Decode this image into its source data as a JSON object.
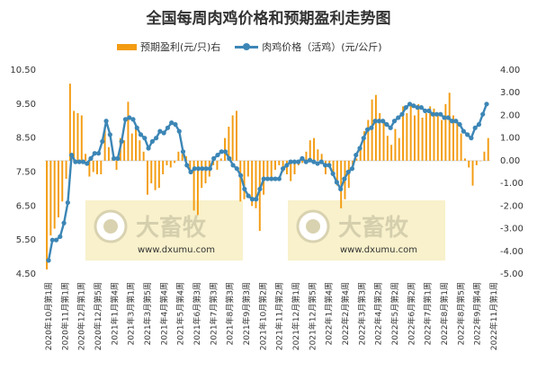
{
  "chart_data": {
    "type": "bar+line",
    "title": "全国每周肉鸡价格和预期盈利走势图",
    "legend": [
      "预期盈利(元/只)右",
      "肉鸡价格（活鸡）(元/公斤)"
    ],
    "legend_position": "top",
    "grid": false,
    "y_left": {
      "ticks": [
        "4.50",
        "5.50",
        "6.50",
        "7.50",
        "8.50",
        "9.50",
        "10.50"
      ],
      "range": [
        4.5,
        10.5
      ]
    },
    "y_right": {
      "ticks": [
        "-5.00",
        "-4.00",
        "-3.00",
        "-2.00",
        "-1.00",
        "0.00",
        "1.00",
        "2.00",
        "3.00",
        "4.00"
      ],
      "range": [
        -5,
        4
      ]
    },
    "x_labels": [
      "2020年10月第1周",
      "2020年11月第1周",
      "2020年12月第1周",
      "2020年12月第5周",
      "2021年1月第4周",
      "2021年3月第1周",
      "2021年3月第5周",
      "2021年4月第4周",
      "2021年5月第4周",
      "2021年6月第3周",
      "2021年7月第3周",
      "2021年8月第3周",
      "2021年9月第3周",
      "2021年10月第2周",
      "2021年11月第2周",
      "2021年12月第1周",
      "2021年12月第5周",
      "2022年1月第4周",
      "2022年2月第4周",
      "2022年3月第3周",
      "2022年4月第2周",
      "2022年5月第2周",
      "2022年6月第2周",
      "2022年7月第1周",
      "2022年8月第1周",
      "2022年8月第5周",
      "2022年9月第4周",
      "2022年11月第1周"
    ],
    "series": [
      {
        "name": "预期盈利(元/只)右",
        "type": "bar",
        "axis": "right",
        "color": "#f39c12",
        "values": [
          -4.8,
          -3.3,
          -3.0,
          -2.5,
          -1.8,
          -0.8,
          3.4,
          2.2,
          2.1,
          2.0,
          0.3,
          -0.7,
          -0.5,
          -0.6,
          -0.6,
          1.5,
          0.6,
          0.1,
          -0.4,
          1.0,
          0.9,
          2.6,
          1.2,
          1.6,
          0.9,
          0.4,
          -1.5,
          -1.0,
          -1.3,
          -1.2,
          -0.6,
          -0.2,
          -0.3,
          -0.1,
          0.4,
          0.3,
          0.2,
          -0.4,
          -2.2,
          -2.4,
          -1.2,
          -1.0,
          -0.7,
          -0.2,
          -0.4,
          0.1,
          1.0,
          1.5,
          2.0,
          2.2,
          -1.8,
          -1.7,
          -0.7,
          -2.0,
          -2.1,
          -3.1,
          -1.5,
          -0.7,
          -0.9,
          -0.4,
          -0.2,
          -0.5,
          -0.6,
          -0.9,
          -0.6,
          -0.2,
          -0.1,
          0.4,
          0.9,
          1.0,
          0.5,
          0.3,
          -0.6,
          -0.2,
          -0.5,
          -1.1,
          -2.1,
          -1.7,
          -1.2,
          -0.3,
          0.1,
          0.6,
          1.3,
          1.8,
          2.7,
          2.9,
          2.1,
          1.7,
          1.1,
          0.7,
          1.4,
          1.0,
          2.4,
          2.1,
          2.5,
          2.0,
          2.5,
          1.9,
          2.1,
          2.4,
          2.3,
          2.1,
          1.8,
          2.5,
          3.0,
          2.0,
          1.7,
          1.2,
          0.1,
          -0.3,
          -1.1,
          -0.2,
          0,
          0.4,
          1.0
        ]
      },
      {
        "name": "肉鸡价格（活鸡）(元/公斤)",
        "type": "line",
        "axis": "left",
        "color": "#3c86b6",
        "values": [
          4.9,
          5.5,
          5.5,
          5.6,
          6.0,
          6.6,
          8.0,
          7.8,
          7.8,
          7.8,
          7.75,
          7.9,
          8.05,
          8.05,
          8.4,
          9.0,
          8.6,
          7.9,
          7.9,
          8.4,
          9.05,
          9.1,
          9.05,
          8.8,
          8.6,
          8.5,
          8.2,
          8.4,
          8.5,
          8.7,
          8.65,
          8.8,
          8.95,
          8.9,
          8.7,
          8.1,
          7.7,
          7.5,
          7.6,
          7.6,
          7.6,
          7.6,
          7.6,
          7.9,
          8.0,
          8.1,
          8.1,
          7.9,
          7.7,
          7.6,
          7.4,
          7.0,
          6.8,
          6.7,
          6.7,
          7.0,
          7.3,
          7.3,
          7.3,
          7.3,
          7.3,
          7.6,
          7.7,
          7.8,
          7.8,
          7.8,
          7.9,
          7.8,
          7.85,
          7.8,
          7.75,
          7.8,
          7.7,
          7.7,
          7.45,
          7.2,
          7.0,
          7.3,
          7.5,
          7.6,
          8.0,
          8.2,
          8.5,
          8.75,
          8.8,
          9.0,
          9.0,
          9.0,
          8.9,
          8.8,
          9.0,
          9.1,
          9.2,
          9.4,
          9.5,
          9.45,
          9.4,
          9.4,
          9.3,
          9.3,
          9.2,
          9.2,
          9.2,
          9.1,
          9.1,
          9.0,
          9.0,
          8.9,
          8.7,
          8.6,
          8.5,
          8.8,
          8.9,
          9.2,
          9.5
        ]
      }
    ]
  },
  "watermark": {
    "brand": "大畜牧",
    "url": "www.dxumu.com"
  }
}
